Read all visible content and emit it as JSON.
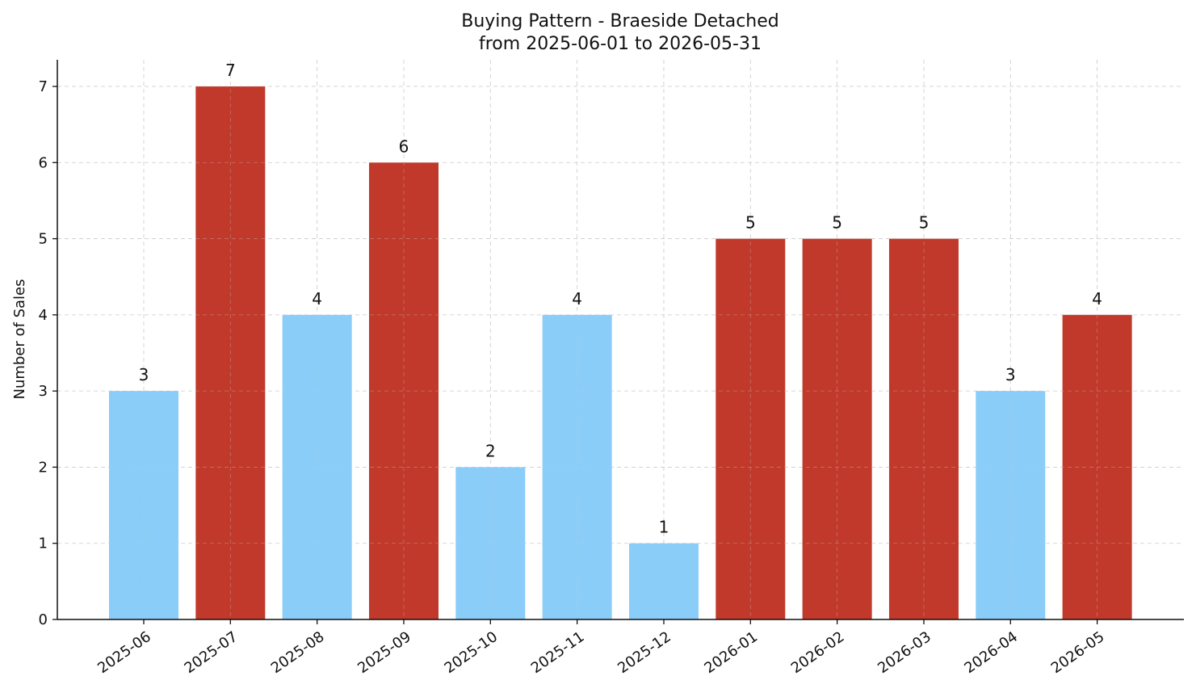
{
  "chart_data": {
    "type": "bar",
    "title": "Buying Pattern - Braeside Detached",
    "subtitle": "from 2025-06-01 to 2026-05-31",
    "xlabel": "",
    "ylabel": "Number of Sales",
    "categories": [
      "2025-06",
      "2025-07",
      "2025-08",
      "2025-09",
      "2025-10",
      "2025-11",
      "2025-12",
      "2026-01",
      "2026-02",
      "2026-03",
      "2026-04",
      "2026-05"
    ],
    "values": [
      3,
      7,
      4,
      6,
      2,
      4,
      1,
      5,
      5,
      5,
      3,
      4
    ],
    "bar_colors": [
      "#89CDF8",
      "#C0392B",
      "#89CDF8",
      "#C0392B",
      "#89CDF8",
      "#89CDF8",
      "#89CDF8",
      "#C0392B",
      "#C0392B",
      "#C0392B",
      "#89CDF8",
      "#C0392B"
    ],
    "ylim": [
      0,
      7.35
    ],
    "yticks": [
      0,
      1,
      2,
      3,
      4,
      5,
      6,
      7
    ],
    "grid": true,
    "data_labels": true
  }
}
